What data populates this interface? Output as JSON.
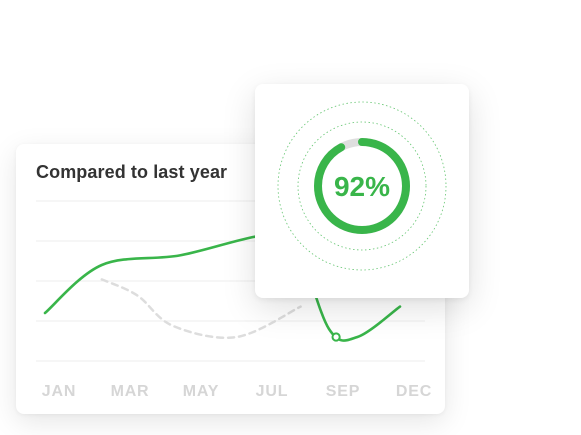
{
  "colors": {
    "accent": "#39b54a",
    "previous": "#dddddd",
    "grid": "#eeeeee",
    "track": "#dedede",
    "label": "#d6d6d6"
  },
  "chart_data": [
    {
      "type": "line",
      "title": "Compared to last year",
      "categories": [
        "JAN",
        "MAR",
        "MAY",
        "JUL",
        "SEP",
        "DEC"
      ],
      "ylim": [
        0,
        5
      ],
      "grid": true,
      "series": [
        {
          "style": "solid",
          "color": "#39b54a",
          "x": [
            0,
            0.8,
            1.9,
            3.0,
            3.5,
            4.0,
            4.4,
            5.0
          ],
          "values": [
            1.5,
            3.0,
            3.3,
            3.9,
            3.8,
            1.0,
            0.75,
            1.7
          ]
        },
        {
          "style": "dashed",
          "color": "#dddddd",
          "x": [
            0.8,
            1.3,
            1.8,
            2.7,
            3.6
          ],
          "values": [
            2.55,
            2.05,
            1.1,
            0.75,
            1.7
          ]
        }
      ],
      "marker": {
        "x": 4.1,
        "value": 0.75
      }
    },
    {
      "type": "gauge",
      "value": 92,
      "max": 100,
      "label": "92%"
    }
  ]
}
